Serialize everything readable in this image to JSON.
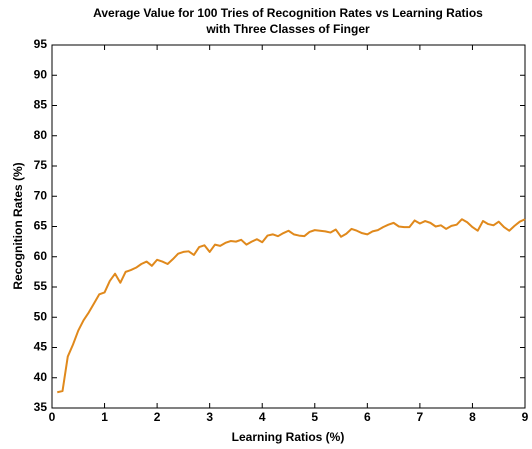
{
  "chart_data": {
    "type": "line",
    "title": [
      "Average Value for 100 Tries of Recognition Rates vs Learning Ratios",
      "with Three Classes of Finger"
    ],
    "xlabel": "Learning Ratios (%)",
    "ylabel": "Recognition Rates (%)",
    "x": [
      0.1,
      0.2,
      0.3,
      0.4,
      0.5,
      0.6,
      0.7,
      0.8,
      0.9,
      1.0,
      1.1,
      1.2,
      1.3,
      1.4,
      1.5,
      1.6,
      1.7,
      1.8,
      1.9,
      2.0,
      2.1,
      2.2,
      2.3,
      2.4,
      2.5,
      2.6,
      2.7,
      2.8,
      2.9,
      3.0,
      3.1,
      3.2,
      3.3,
      3.4,
      3.5,
      3.6,
      3.7,
      3.8,
      3.9,
      4.0,
      4.1,
      4.2,
      4.3,
      4.4,
      4.5,
      4.6,
      4.7,
      4.8,
      4.9,
      5.0,
      5.1,
      5.2,
      5.3,
      5.4,
      5.5,
      5.6,
      5.7,
      5.8,
      5.9,
      6.0,
      6.1,
      6.2,
      6.3,
      6.4,
      6.5,
      6.6,
      6.7,
      6.8,
      6.9,
      7.0,
      7.1,
      7.2,
      7.3,
      7.4,
      7.5,
      7.6,
      7.7,
      7.8,
      7.9,
      8.0,
      8.1,
      8.2,
      8.3,
      8.4,
      8.5,
      8.6,
      8.7,
      8.8,
      8.9,
      9.0
    ],
    "values": [
      37.6,
      37.8,
      43.5,
      45.5,
      47.8,
      49.5,
      50.8,
      52.3,
      53.8,
      54.1,
      56.0,
      57.2,
      55.7,
      57.5,
      57.8,
      58.2,
      58.8,
      59.2,
      58.5,
      59.5,
      59.2,
      58.8,
      59.6,
      60.5,
      60.8,
      60.9,
      60.3,
      61.6,
      61.9,
      60.8,
      62.0,
      61.8,
      62.3,
      62.6,
      62.5,
      62.8,
      62.0,
      62.5,
      62.9,
      62.4,
      63.5,
      63.7,
      63.4,
      63.9,
      64.3,
      63.7,
      63.5,
      63.4,
      64.1,
      64.4,
      64.3,
      64.2,
      64.0,
      64.5,
      63.3,
      63.8,
      64.6,
      64.3,
      63.9,
      63.7,
      64.2,
      64.4,
      64.9,
      65.3,
      65.6,
      65.0,
      64.9,
      64.9,
      66.0,
      65.5,
      65.9,
      65.6,
      65.0,
      65.2,
      64.6,
      65.1,
      65.3,
      66.2,
      65.7,
      64.9,
      64.3,
      65.9,
      65.4,
      65.2,
      65.8,
      64.9,
      64.3,
      65.1,
      65.8,
      66.2
    ],
    "color": "#e0891c",
    "xlim": [
      0,
      9
    ],
    "xticks": [
      0,
      1,
      2,
      3,
      4,
      5,
      6,
      7,
      8,
      9
    ],
    "ylim": [
      35,
      95
    ],
    "yticks": [
      35,
      40,
      45,
      50,
      55,
      60,
      65,
      70,
      75,
      80,
      85,
      90,
      95
    ]
  }
}
